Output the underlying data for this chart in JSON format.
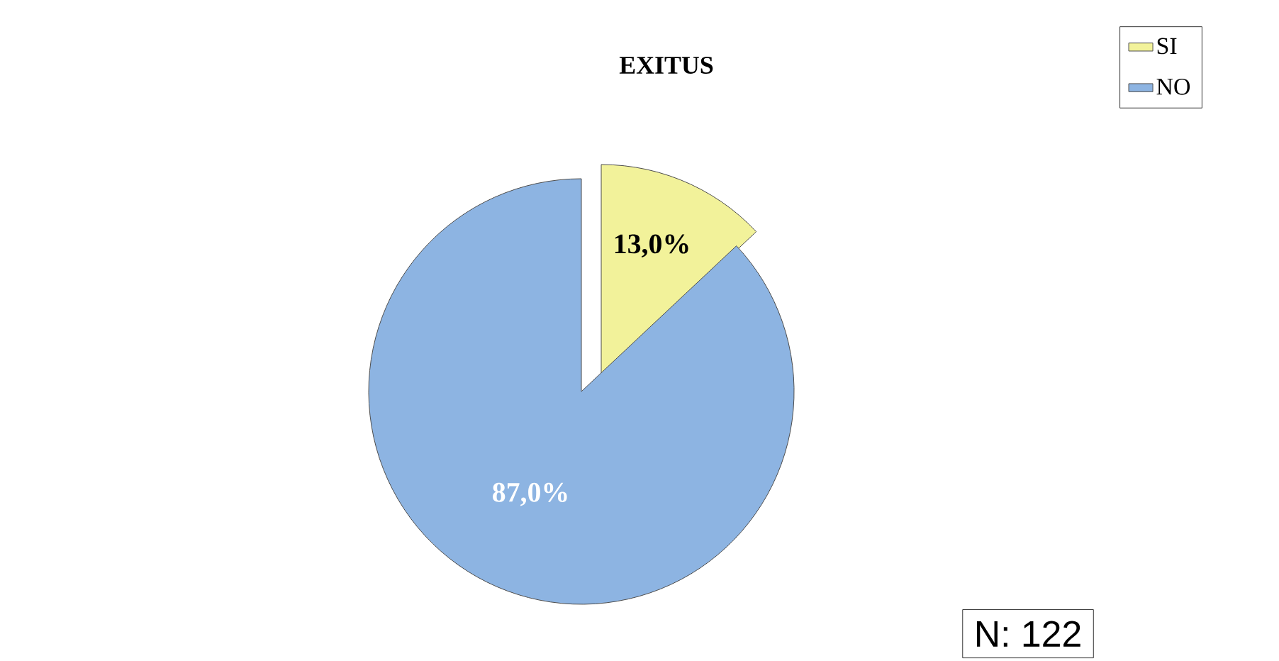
{
  "chart_data": {
    "type": "pie",
    "title": "EXITUS",
    "categories": [
      "SI",
      "NO"
    ],
    "values": [
      13.0,
      87.0
    ],
    "colors": [
      "#f2f29a",
      "#8db4e2"
    ],
    "value_labels": [
      "13,0%",
      "87,0%"
    ],
    "legend": "top right",
    "annotations": [
      "N: 122"
    ]
  }
}
